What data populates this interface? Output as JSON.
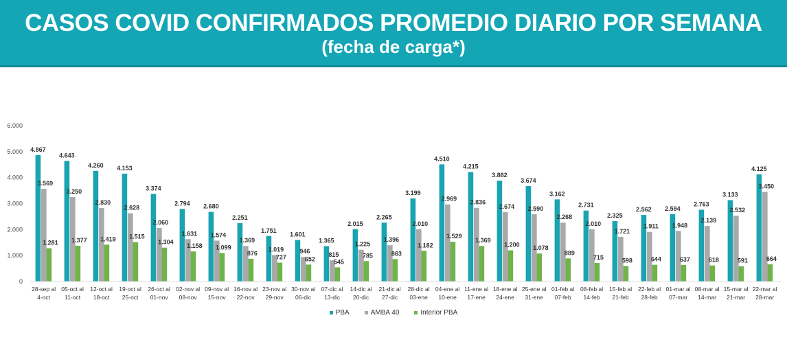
{
  "header": {
    "title": "CASOS COVID CONFIRMADOS PROMEDIO DIARIO POR SEMANA",
    "subtitle": "(fecha de carga*)"
  },
  "colors": {
    "pba": "#1aa3b0",
    "amba": "#a9a9a9",
    "interior": "#6fb34a",
    "header": "#14a6b5"
  },
  "chart_data": {
    "type": "bar",
    "title": "CASOS COVID CONFIRMADOS PROMEDIO DIARIO POR SEMANA",
    "subtitle": "(fecha de carga*)",
    "ylim": [
      0,
      6000
    ],
    "yticks": [
      "0",
      "1.000",
      "2.000",
      "3.000",
      "4.000",
      "5.000",
      "6.000"
    ],
    "legend_position": "bottom",
    "grid": false,
    "categories": [
      [
        "28-sep al",
        "4-oct"
      ],
      [
        "05-oct al",
        "11-oct"
      ],
      [
        "12-oct al",
        "18-oct"
      ],
      [
        "19-oct al",
        "25-oct"
      ],
      [
        "26-oct al",
        "01-nov"
      ],
      [
        "02-nov al",
        "08-nov"
      ],
      [
        "09-nov al",
        "15-nov"
      ],
      [
        "16-nov al",
        "22-nov"
      ],
      [
        "23-nov al",
        "29-nov"
      ],
      [
        "30-nov al",
        "06-dic"
      ],
      [
        "07-dic al",
        "13-dic"
      ],
      [
        "14-dic al",
        "20-dic"
      ],
      [
        "21-dic al",
        "27-dic"
      ],
      [
        "28-dic al",
        "03-ene"
      ],
      [
        "04-ene al",
        "10-ene"
      ],
      [
        "11-ene al",
        "17-ene"
      ],
      [
        "18-ene al",
        "24-ene"
      ],
      [
        "25-ene al",
        "31-ene"
      ],
      [
        "01-feb al",
        "07-feb"
      ],
      [
        "08-feb al",
        "14-feb"
      ],
      [
        "15-feb al",
        "21-feb"
      ],
      [
        "22-feb al",
        "28-feb"
      ],
      [
        "01-mar al",
        "07-mar"
      ],
      [
        "08-mar al",
        "14-mar"
      ],
      [
        "15-mar al",
        "21-mar"
      ],
      [
        "22-mar al",
        "28-mar"
      ]
    ],
    "series": [
      {
        "name": "PBA",
        "color": "#1aa3b0",
        "values": [
          4867,
          4643,
          4260,
          4153,
          3374,
          2794,
          2680,
          2251,
          1751,
          1601,
          1365,
          2015,
          2265,
          3199,
          4510,
          4215,
          3882,
          3674,
          3162,
          2731,
          2325,
          2562,
          2594,
          2763,
          3133,
          4125
        ],
        "labels": [
          "4.867",
          "4.643",
          "4.260",
          "4.153",
          "3.374",
          "2.794",
          "2.680",
          "2.251",
          "1.751",
          "1.601",
          "1.365",
          "2.015",
          "2.265",
          "3.199",
          "4.510",
          "4.215",
          "3.882",
          "3.674",
          "3.162",
          "2.731",
          "2.325",
          "2.562",
          "2.594",
          "2.763",
          "3.133",
          "4.125"
        ]
      },
      {
        "name": "AMBA 40",
        "color": "#a9a9a9",
        "values": [
          3569,
          3250,
          2830,
          2628,
          2060,
          1631,
          1574,
          1369,
          1019,
          946,
          815,
          1225,
          1396,
          2010,
          2969,
          2836,
          2674,
          2590,
          2268,
          2010,
          1721,
          1911,
          1948,
          2139,
          2532,
          3450
        ],
        "labels": [
          "3.569",
          "3.250",
          "2.830",
          "2.628",
          "2.060",
          "1.631",
          "1.574",
          "1.369",
          "1.019",
          "946",
          "815",
          "1.225",
          "1.396",
          "2.010",
          "2.969",
          "2.836",
          "2.674",
          "2.590",
          "2.268",
          "2.010",
          "1.721",
          "1.911",
          "1.948",
          "2.139",
          "2.532",
          "3.450"
        ]
      },
      {
        "name": "Interior PBA",
        "color": "#6fb34a",
        "values": [
          1281,
          1377,
          1419,
          1515,
          1304,
          1158,
          1099,
          876,
          727,
          652,
          545,
          785,
          863,
          1182,
          1529,
          1369,
          1200,
          1078,
          889,
          715,
          598,
          644,
          637,
          618,
          591,
          664
        ],
        "labels": [
          "1.281",
          "1.377",
          "1.419",
          "1.515",
          "1.304",
          "1.158",
          "1.099",
          "876",
          "727",
          "652",
          "545",
          "785",
          "863",
          "1.182",
          "1.529",
          "1.369",
          "1.200",
          "1.078",
          "889",
          "715",
          "598",
          "644",
          "637",
          "618",
          "591",
          "664"
        ]
      }
    ]
  }
}
